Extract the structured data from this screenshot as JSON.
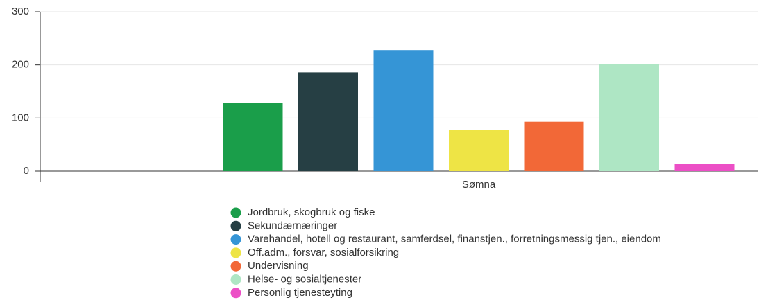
{
  "chart_data": {
    "type": "bar",
    "categories": [
      "Sømna"
    ],
    "series": [
      {
        "name": "Jordbruk, skogbruk og fiske",
        "color": "#1a9e4a",
        "values": [
          128
        ]
      },
      {
        "name": "Sekundærnæringer",
        "color": "#263f44",
        "values": [
          186
        ]
      },
      {
        "name": "Varehandel, hotell og restaurant, samferdsel, finanstjen., forretningsmessig tjen., eiendom",
        "color": "#3595d6",
        "values": [
          228
        ]
      },
      {
        "name": "Off.adm., forsvar, sosialforsikring",
        "color": "#eee445",
        "values": [
          77
        ]
      },
      {
        "name": "Undervisning",
        "color": "#f26837",
        "values": [
          93
        ]
      },
      {
        "name": "Helse- og sosialtjenester",
        "color": "#aee6c4",
        "values": [
          202
        ]
      },
      {
        "name": "Personlig tjenesteyting",
        "color": "#ec4fc6",
        "values": [
          14
        ]
      }
    ],
    "ylim": [
      0,
      300
    ],
    "yticks": [
      0,
      100,
      200,
      300
    ],
    "grid": true,
    "legend": "bottom"
  }
}
